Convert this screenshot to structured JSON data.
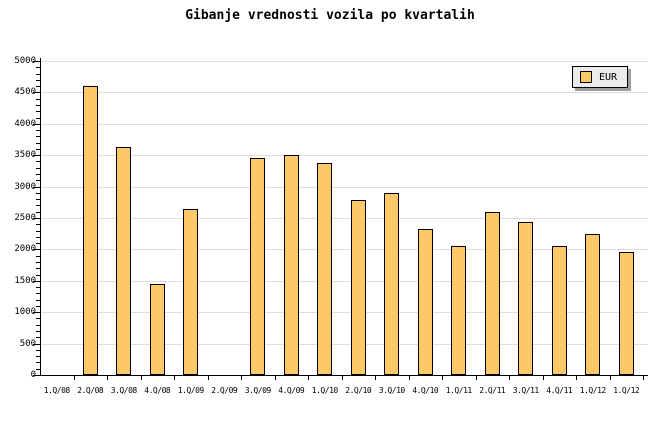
{
  "chart_data": {
    "type": "bar",
    "title": "Gibanje vrednosti vozila po kvartalih",
    "categories": [
      "1.Q/08",
      "2.Q/08",
      "3.Q/08",
      "4.Q/08",
      "1.Q/09",
      "2.Q/09",
      "3.Q/09",
      "4.Q/09",
      "1.Q/10",
      "2.Q/10",
      "3.Q/10",
      "4.Q/10",
      "1.Q/11",
      "2.Q/11",
      "3.Q/11",
      "4.Q/11",
      "1.Q/12",
      "1.Q/12"
    ],
    "series": [
      {
        "name": "EUR",
        "values": [
          null,
          4600,
          3630,
          1450,
          2650,
          null,
          3450,
          3510,
          3370,
          2780,
          2900,
          2320,
          2060,
          2590,
          2440,
          2050,
          2240,
          1960
        ]
      }
    ],
    "xlabel": "",
    "ylabel": "",
    "ylim": [
      0,
      5000
    ],
    "y_tick_step": 500,
    "y_minor_tick_step": 100,
    "grid": "horizontal-major",
    "legend": {
      "position": "top-right",
      "entries": [
        "EUR"
      ]
    },
    "colors": {
      "bar_fill": "#fdc968",
      "bar_border": "#000000",
      "gridline": "#dedede",
      "axis": "#000000",
      "legend_bg": "#ebebeb",
      "legend_shadow": "#9e9e9e",
      "text": "#000000"
    }
  }
}
